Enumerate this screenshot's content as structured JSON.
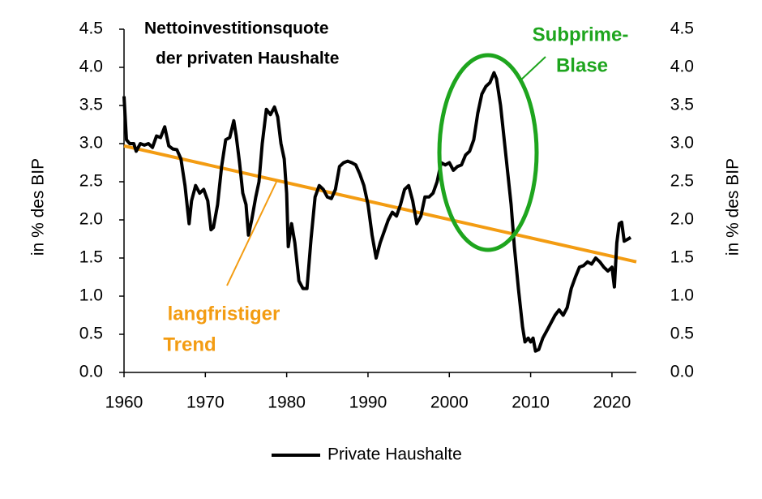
{
  "chart_data": {
    "type": "line",
    "title": [
      "Nettoinvestitionsquote",
      "der privaten Haushalte"
    ],
    "y_label": "in % des BIP",
    "y2_label": "in % des BIP",
    "x": [
      1960,
      1960.3,
      1960.7,
      1961.2,
      1961.5,
      1962,
      1962.5,
      1963,
      1963.5,
      1964,
      1964.5,
      1965,
      1965.5,
      1966,
      1966.5,
      1967,
      1967.5,
      1968,
      1968.3,
      1968.8,
      1969.3,
      1969.8,
      1970.3,
      1970.7,
      1971,
      1971.5,
      1972,
      1972.5,
      1973,
      1973.5,
      1973.8,
      1974.2,
      1974.6,
      1975,
      1975.3,
      1975.7,
      1976.2,
      1976.6,
      1977,
      1977.5,
      1978,
      1978.5,
      1978.9,
      1979.3,
      1979.7,
      1980,
      1980.2,
      1980.6,
      1981,
      1981.5,
      1982,
      1982.5,
      1983,
      1983.5,
      1984,
      1984.5,
      1985,
      1985.5,
      1986,
      1986.5,
      1987,
      1987.5,
      1988,
      1988.5,
      1989,
      1989.5,
      1990,
      1990.5,
      1991,
      1991.5,
      1992,
      1992.5,
      1993,
      1993.5,
      1994,
      1994.5,
      1995,
      1995.5,
      1996,
      1996.5,
      1997,
      1997.5,
      1998,
      1998.5,
      1999,
      1999.5,
      2000,
      2000.5,
      2001,
      2001.5,
      2002,
      2002.5,
      2003,
      2003.5,
      2004,
      2004.5,
      2005,
      2005.5,
      2005.8,
      2006.3,
      2006.7,
      2007.2,
      2007.6,
      2008,
      2008.5,
      2009,
      2009.3,
      2009.7,
      2010,
      2010.3,
      2010.6,
      2011,
      2011.5,
      2012,
      2012.5,
      2013,
      2013.5,
      2014,
      2014.5,
      2015,
      2015.5,
      2016,
      2016.5,
      2017,
      2017.5,
      2018,
      2018.5,
      2019,
      2019.5,
      2020,
      2020.3,
      2020.6,
      2020.9,
      2021.2,
      2021.5,
      2022,
      2022.3
    ],
    "series": [
      {
        "name": "Private Haushalte",
        "color": "#000000",
        "values": [
          3.62,
          3.05,
          3.0,
          3.0,
          2.9,
          3.0,
          2.98,
          3.0,
          2.95,
          3.1,
          3.08,
          3.22,
          2.97,
          2.93,
          2.92,
          2.8,
          2.45,
          1.95,
          2.25,
          2.45,
          2.35,
          2.4,
          2.25,
          1.87,
          1.9,
          2.2,
          2.7,
          3.05,
          3.08,
          3.3,
          3.1,
          2.75,
          2.35,
          2.2,
          1.8,
          2.0,
          2.3,
          2.5,
          3.0,
          3.45,
          3.38,
          3.48,
          3.35,
          3.0,
          2.8,
          2.35,
          1.65,
          1.95,
          1.7,
          1.2,
          1.1,
          1.1,
          1.75,
          2.3,
          2.45,
          2.4,
          2.3,
          2.28,
          2.4,
          2.7,
          2.75,
          2.77,
          2.75,
          2.72,
          2.6,
          2.45,
          2.2,
          1.8,
          1.5,
          1.7,
          1.85,
          2.0,
          2.1,
          2.05,
          2.2,
          2.4,
          2.45,
          2.25,
          1.95,
          2.05,
          2.3,
          2.3,
          2.35,
          2.5,
          2.75,
          2.72,
          2.75,
          2.65,
          2.7,
          2.72,
          2.85,
          2.9,
          3.05,
          3.4,
          3.65,
          3.75,
          3.8,
          3.93,
          3.85,
          3.5,
          3.1,
          2.6,
          2.2,
          1.65,
          1.1,
          0.6,
          0.4,
          0.45,
          0.4,
          0.45,
          0.28,
          0.3,
          0.45,
          0.55,
          0.65,
          0.75,
          0.82,
          0.75,
          0.85,
          1.1,
          1.25,
          1.38,
          1.4,
          1.45,
          1.42,
          1.5,
          1.45,
          1.38,
          1.33,
          1.38,
          1.12,
          1.7,
          1.95,
          1.97,
          1.72,
          1.75,
          1.77
        ]
      }
    ],
    "trend": {
      "x": [
        1960,
        2023
      ],
      "values": [
        2.97,
        1.45
      ],
      "color": "#f39c12"
    },
    "annotations": [
      {
        "text": [
          "langfristiger",
          "Trend"
        ],
        "color": "#f39c12"
      },
      {
        "text": [
          "Subprime-",
          "Blase"
        ],
        "color": "#1ea51e"
      }
    ],
    "xlim": [
      1960,
      2023
    ],
    "xticks": [
      1960,
      1970,
      1980,
      1990,
      2000,
      2010,
      2020
    ],
    "ylim": [
      0,
      4.5
    ],
    "yticks": [
      {
        "value": 0,
        "label": "0.0"
      },
      {
        "value": 0.5,
        "label": "0.5"
      },
      {
        "value": 1,
        "label": "1.0"
      },
      {
        "value": 1.5,
        "label": "1.5"
      },
      {
        "value": 2,
        "label": "2.0"
      },
      {
        "value": 2.5,
        "label": "2.5"
      },
      {
        "value": 3,
        "label": "3.0"
      },
      {
        "value": 3.5,
        "label": "3.5"
      },
      {
        "value": 4,
        "label": "4.0"
      },
      {
        "value": 4.5,
        "label": "4.5"
      }
    ],
    "y2lim": [
      0,
      4.5
    ],
    "y2ticks": [
      {
        "value": 0,
        "label": "0.0"
      },
      {
        "value": 0.5,
        "label": "0.5"
      },
      {
        "value": 1,
        "label": "1.0"
      },
      {
        "value": 1.5,
        "label": "1.5"
      },
      {
        "value": 2,
        "label": "2.0"
      },
      {
        "value": 2.5,
        "label": "2.5"
      },
      {
        "value": 3,
        "label": "3.0"
      },
      {
        "value": 3.5,
        "label": "3.5"
      },
      {
        "value": 4,
        "label": "4.0"
      },
      {
        "value": 4.5,
        "label": "4.5"
      }
    ],
    "legend": "bottom"
  }
}
